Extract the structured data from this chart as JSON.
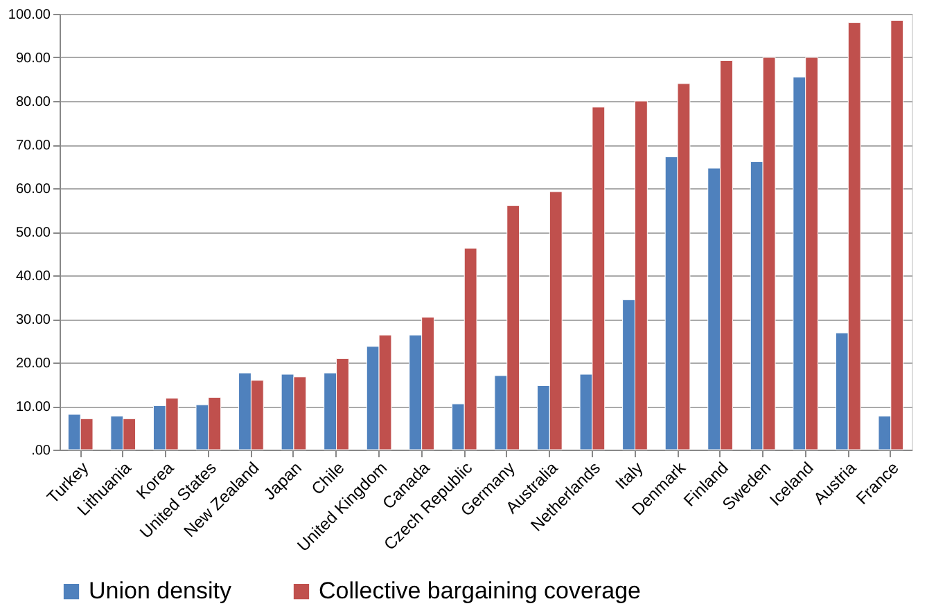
{
  "chart_data": {
    "type": "bar",
    "categories": [
      "Turkey",
      "Lithuania",
      "Korea",
      "United States",
      "New Zealand",
      "Japan",
      "Chile",
      "United Kingdom",
      "Canada",
      "Czech Republic",
      "Germany",
      "Australia",
      "Netherlands",
      "Italy",
      "Denmark",
      "Finland",
      "Sweden",
      "Iceland",
      "Austria",
      "France"
    ],
    "series": [
      {
        "name": "Union density",
        "color": "#4f81bd",
        "values": [
          8.1,
          7.7,
          10.1,
          10.3,
          17.6,
          17.3,
          17.6,
          23.7,
          26.3,
          10.5,
          17.0,
          14.7,
          17.3,
          34.4,
          67.2,
          64.6,
          66.1,
          85.5,
          26.8,
          7.7
        ]
      },
      {
        "name": "Collective bargaining coverage",
        "color": "#c0504d",
        "values": [
          7.1,
          7.1,
          11.8,
          12.0,
          15.9,
          16.7,
          20.9,
          26.3,
          30.4,
          46.2,
          56.0,
          59.2,
          78.6,
          80.0,
          84.0,
          89.3,
          90.0,
          90.0,
          98.0,
          98.5
        ]
      }
    ],
    "ylim": [
      0,
      100
    ],
    "yticks": [
      {
        "value": 0,
        "label": ".00"
      },
      {
        "value": 10,
        "label": "10.00"
      },
      {
        "value": 20,
        "label": "20.00"
      },
      {
        "value": 30,
        "label": "30.00"
      },
      {
        "value": 40,
        "label": "40.00"
      },
      {
        "value": 50,
        "label": "50.00"
      },
      {
        "value": 60,
        "label": "60.00"
      },
      {
        "value": 70,
        "label": "70.00"
      },
      {
        "value": 80,
        "label": "80.00"
      },
      {
        "value": 90,
        "label": "90.00"
      },
      {
        "value": 100,
        "label": "100.00"
      }
    ],
    "grid": "y",
    "legend": "bottom"
  }
}
